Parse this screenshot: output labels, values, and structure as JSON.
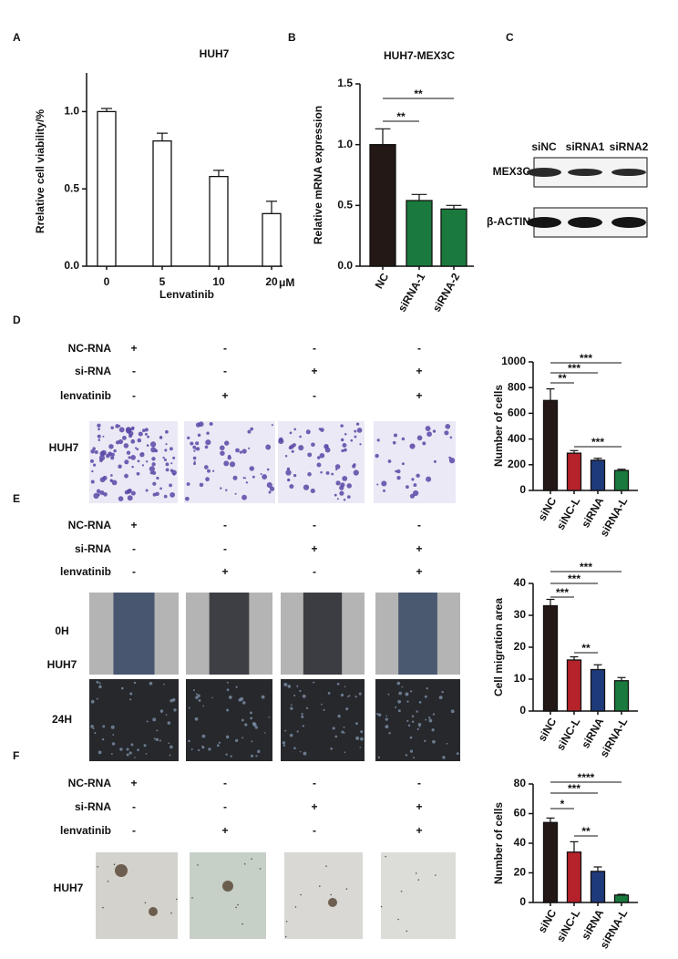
{
  "panel_labels": [
    "A",
    "B",
    "C",
    "D",
    "E",
    "F"
  ],
  "blot": {
    "lanes": [
      "siNC",
      "siRNA1",
      "siRNA2"
    ],
    "rows": [
      "MEX3C",
      "β-ACTIN"
    ]
  },
  "tables": [
    {
      "rows": [
        {
          "name": "NC-RNA",
          "signs": [
            "+",
            "-",
            "-",
            "-"
          ]
        },
        {
          "name": "si-RNA",
          "signs": [
            "-",
            "-",
            "+",
            "+"
          ]
        },
        {
          "name": "lenvatinib",
          "signs": [
            "-",
            "+",
            "-",
            "+"
          ]
        }
      ]
    },
    {
      "rows": [
        {
          "name": "NC-RNA",
          "signs": [
            "+",
            "-",
            "-",
            "-"
          ]
        },
        {
          "name": "si-RNA",
          "signs": [
            "-",
            "-",
            "+",
            "+"
          ]
        },
        {
          "name": "lenvatinib",
          "signs": [
            "-",
            "+",
            "-",
            "+"
          ]
        }
      ]
    },
    {
      "rows": [
        {
          "name": "NC-RNA",
          "signs": [
            "+",
            "-",
            "-",
            "-"
          ]
        },
        {
          "name": "si-RNA",
          "signs": [
            "-",
            "-",
            "+",
            "+"
          ]
        },
        {
          "name": "lenvatinib",
          "signs": [
            "-",
            "+",
            "-",
            "+"
          ]
        }
      ]
    }
  ],
  "transwell": {
    "cell_line": "HUH7"
  },
  "wound": {
    "time_points": [
      "0H",
      "24H"
    ],
    "cell_line": "HUH7"
  },
  "colony": {
    "cell_line": "HUH7"
  },
  "chart_data": [
    {
      "type": "bar",
      "title": "HUH7",
      "y_label": "Rrelative cell viability/%",
      "x_label": "Lenvatinib",
      "unit": "μM",
      "categories": [
        "0",
        "5",
        "10",
        "20"
      ],
      "values": [
        1.0,
        0.81,
        0.58,
        0.34
      ],
      "errors": [
        0.02,
        0.05,
        0.04,
        0.08
      ],
      "colors": [
        "#ffffff",
        "#ffffff",
        "#ffffff",
        "#ffffff"
      ],
      "ylim": [
        0,
        1.25
      ],
      "yticks": [
        {
          "value": 0,
          "label": "0.0"
        },
        {
          "value": 0.5,
          "label": "0.5"
        },
        {
          "value": 1,
          "label": "1.0"
        }
      ],
      "annotations": []
    },
    {
      "type": "bar",
      "title": "HUH7-MEX3C",
      "y_label": "Relative mRNA expression",
      "categories": [
        "NC",
        "siRNA-1",
        "siRNA-2"
      ],
      "values": [
        1.0,
        0.54,
        0.47
      ],
      "errors": [
        0.13,
        0.05,
        0.03
      ],
      "colors": [
        "#231815",
        "#1a7a3e",
        "#1a7a3e"
      ],
      "ylim": [
        0,
        1.5
      ],
      "yticks": [
        {
          "value": 0,
          "label": "0.0"
        },
        {
          "value": 0.5,
          "label": "0.5"
        },
        {
          "value": 1,
          "label": "1.0"
        },
        {
          "value": 1.5,
          "label": "1.5"
        }
      ],
      "annotations": [
        {
          "text": "**",
          "from": "NC",
          "to": "siRNA-1"
        },
        {
          "text": "**",
          "from": "NC",
          "to": "siRNA-2"
        }
      ]
    },
    {
      "type": "bar",
      "y_label": "Number of cells",
      "categories": [
        "siNC",
        "siNC-L",
        "siRNA",
        "siRNA-L"
      ],
      "values": [
        700,
        290,
        235,
        155
      ],
      "errors": [
        90,
        20,
        15,
        10
      ],
      "colors": [
        "#231815",
        "#b5222a",
        "#1f3a7a",
        "#1a7a3e"
      ],
      "ylim": [
        0,
        1000
      ],
      "yticks": [
        0,
        200,
        400,
        600,
        800,
        1000
      ],
      "annotations": [
        {
          "text": "**",
          "from": "siNC",
          "to": "siNC-L"
        },
        {
          "text": "***",
          "from": "siNC",
          "to": "siRNA"
        },
        {
          "text": "***",
          "from": "siNC",
          "to": "siRNA-L"
        },
        {
          "text": "***",
          "from": "siNC-L",
          "to": "siRNA-L"
        }
      ]
    },
    {
      "type": "bar",
      "y_label": "Cell migration area",
      "categories": [
        "siNC",
        "siNC-L",
        "siRNA",
        "siRNA-L"
      ],
      "values": [
        33,
        16,
        13,
        9.5
      ],
      "errors": [
        2,
        1,
        1.5,
        1
      ],
      "colors": [
        "#231815",
        "#b5222a",
        "#1f3a7a",
        "#1a7a3e"
      ],
      "ylim": [
        0,
        40
      ],
      "yticks": [
        0,
        10,
        20,
        30,
        40
      ],
      "annotations": [
        {
          "text": "***",
          "from": "siNC",
          "to": "siNC-L"
        },
        {
          "text": "***",
          "from": "siNC",
          "to": "siRNA"
        },
        {
          "text": "***",
          "from": "siNC",
          "to": "siRNA-L"
        },
        {
          "text": "**",
          "from": "siNC-L",
          "to": "siRNA"
        }
      ]
    },
    {
      "type": "bar",
      "y_label": "Number of cells",
      "categories": [
        "siNC",
        "siNC-L",
        "siRNA",
        "siRNA-L"
      ],
      "values": [
        54,
        34,
        21,
        5
      ],
      "errors": [
        3,
        7,
        3,
        0.5
      ],
      "colors": [
        "#231815",
        "#b5222a",
        "#1f3a7a",
        "#1a7a3e"
      ],
      "ylim": [
        0,
        80
      ],
      "yticks": [
        0,
        20,
        40,
        60,
        80
      ],
      "annotations": [
        {
          "text": "*",
          "from": "siNC",
          "to": "siNC-L"
        },
        {
          "text": "***",
          "from": "siNC",
          "to": "siRNA"
        },
        {
          "text": "****",
          "from": "siNC",
          "to": "siRNA-L"
        },
        {
          "text": "**",
          "from": "siNC-L",
          "to": "siRNA"
        }
      ]
    }
  ]
}
